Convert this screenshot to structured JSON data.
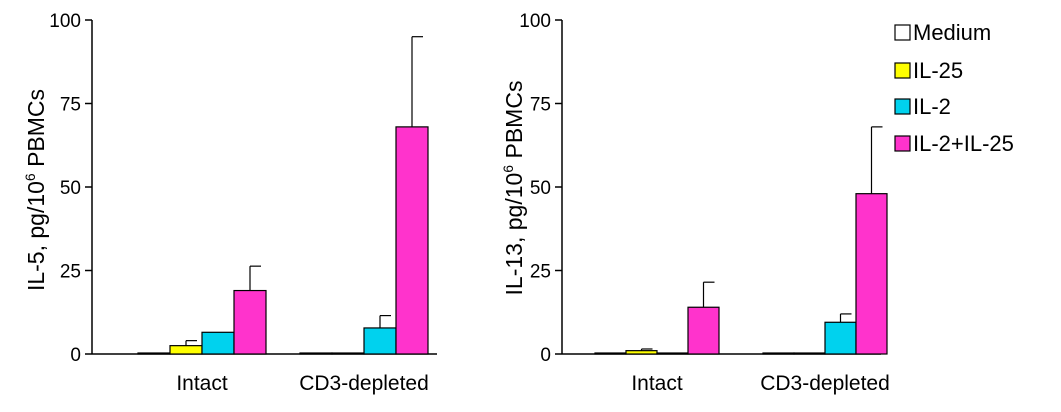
{
  "chart_data": [
    {
      "type": "bar",
      "ylabel": "IL-5, pg/10",
      "ylabel_sup": "6",
      "ylabel_suffix": " PBMCs",
      "ylim": [
        0,
        100
      ],
      "yticks": [
        "0",
        "25",
        "50",
        "75",
        "100"
      ],
      "categories": [
        "Intact",
        "CD3-depleted"
      ],
      "series": [
        {
          "name": "Medium",
          "values": [
            0.3,
            0.3
          ],
          "errors": [
            0,
            0
          ]
        },
        {
          "name": "IL-25",
          "values": [
            2.5,
            0.3
          ],
          "errors": [
            1.5,
            0
          ]
        },
        {
          "name": "IL-2",
          "values": [
            6.5,
            7.8
          ],
          "errors": [
            0,
            3.7
          ]
        },
        {
          "name": "IL-2+IL-25",
          "values": [
            19,
            68
          ],
          "errors": [
            7.3,
            27
          ]
        }
      ]
    },
    {
      "type": "bar",
      "ylabel": "IL-13, pg/10",
      "ylabel_sup": "6",
      "ylabel_suffix": " PBMCs",
      "ylim": [
        0,
        100
      ],
      "yticks": [
        "0",
        "25",
        "50",
        "75",
        "100"
      ],
      "categories": [
        "Intact",
        "CD3-depleted"
      ],
      "series": [
        {
          "name": "Medium",
          "values": [
            0.3,
            0.3
          ],
          "errors": [
            0,
            0
          ]
        },
        {
          "name": "IL-25",
          "values": [
            1,
            0.3
          ],
          "errors": [
            0.5,
            0
          ]
        },
        {
          "name": "IL-2",
          "values": [
            0.3,
            9.5
          ],
          "errors": [
            0,
            2.5
          ]
        },
        {
          "name": "IL-2+IL-25",
          "values": [
            14,
            48
          ],
          "errors": [
            7.5,
            20
          ]
        }
      ]
    }
  ],
  "legend": {
    "placement": "top-right",
    "items": [
      {
        "label": "Medium",
        "color": "#ffffff"
      },
      {
        "label": "IL-25",
        "color": "#ffff00"
      },
      {
        "label": "IL-2",
        "color": "#00d2ee"
      },
      {
        "label": "IL-2+IL-25",
        "color": "#ff33cc"
      }
    ]
  },
  "colors": {
    "Medium": "#ffffff",
    "IL-25": "#ffff00",
    "IL-2": "#00d2ee",
    "IL-2+IL-25": "#ff33cc",
    "stroke": "#000000"
  }
}
